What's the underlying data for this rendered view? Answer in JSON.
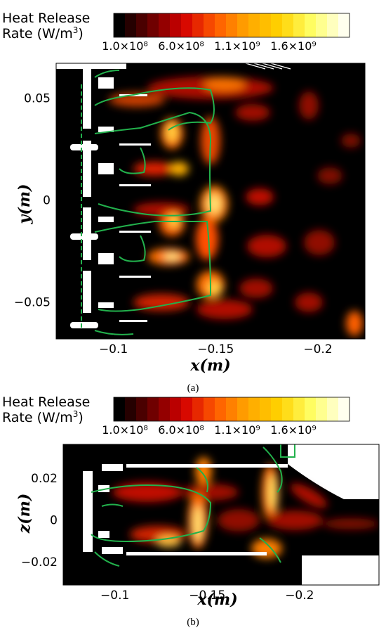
{
  "chart_data": [
    {
      "type": "heatmap",
      "panel_label": "(a)",
      "colorbar": {
        "title_line1": "Heat Release",
        "title_line2_pre": "Rate (W/m",
        "title_line2_sup": "3",
        "title_line2_post": ")",
        "tick_labels": [
          "1.0×10⁸",
          "6.0×10⁸",
          "1.1×10⁹",
          "1.6×10⁹"
        ],
        "tick_values": [
          100000000,
          600000000,
          1100000000,
          1600000000
        ],
        "range": [
          0,
          2100000000
        ],
        "levels": 21,
        "colors": [
          "#000000",
          "#6a0000",
          "#d40000",
          "#ff5a00",
          "#ffa600",
          "#ffd200",
          "#ffff66",
          "#ffffee"
        ]
      },
      "xlabel": "x(m)",
      "ylabel": "y(m)",
      "x_ticks": [
        "−0.1",
        "−0.15",
        "−0.2"
      ],
      "x_tick_values": [
        -0.1,
        -0.15,
        -0.2
      ],
      "y_ticks": [
        "0.05",
        "0",
        "−0.05"
      ],
      "y_tick_values": [
        0.05,
        0,
        -0.05
      ],
      "xlim": [
        -0.072,
        -0.223
      ],
      "ylim": [
        -0.068,
        0.067
      ],
      "contour_color": "#22b14c",
      "flames": [
        {
          "x": -0.128,
          "y": 0.026,
          "v": 1.6
        },
        {
          "x": -0.128,
          "y": -0.024,
          "v": 1.6
        },
        {
          "x": -0.143,
          "y": 0.002,
          "v": 1.5
        },
        {
          "x": -0.143,
          "y": -0.045,
          "v": 1.4
        },
        {
          "x": -0.112,
          "y": 0.048,
          "v": 1.2
        },
        {
          "x": -0.112,
          "y": -0.048,
          "v": 1.2
        }
      ]
    },
    {
      "type": "heatmap",
      "panel_label": "(b)",
      "colorbar": {
        "title_line1": "Heat Release",
        "title_line2_pre": "Rate (W/m",
        "title_line2_sup": "3",
        "title_line2_post": ")",
        "tick_labels": [
          "1.0×10⁸",
          "6.0×10⁸",
          "1.1×10⁹",
          "1.6×10⁹"
        ],
        "tick_values": [
          100000000,
          600000000,
          1100000000,
          1600000000
        ],
        "range": [
          0,
          2100000000
        ],
        "levels": 21,
        "colors": [
          "#000000",
          "#6a0000",
          "#d40000",
          "#ff5a00",
          "#ffa600",
          "#ffd200",
          "#ffff66",
          "#ffffee"
        ]
      },
      "xlabel": "x(m)",
      "ylabel": "z(m)",
      "x_ticks": [
        "−0.1",
        "−0.15",
        "−0.2"
      ],
      "x_tick_values": [
        -0.1,
        -0.15,
        -0.2
      ],
      "y_ticks": [
        "0.02",
        "0",
        "−0.02"
      ],
      "y_tick_values": [
        0.02,
        0,
        -0.02
      ],
      "xlim": [
        -0.072,
        -0.243
      ],
      "ylim": [
        -0.031,
        0.036
      ],
      "contour_color": "#22b14c",
      "flames": [
        {
          "x": -0.148,
          "z": 0.005,
          "v": 1.6
        },
        {
          "x": -0.183,
          "z": 0.012,
          "v": 1.3
        },
        {
          "x": -0.125,
          "z": -0.022,
          "v": 1.4
        },
        {
          "x": -0.145,
          "z": 0.018,
          "v": 1.1
        }
      ]
    }
  ]
}
